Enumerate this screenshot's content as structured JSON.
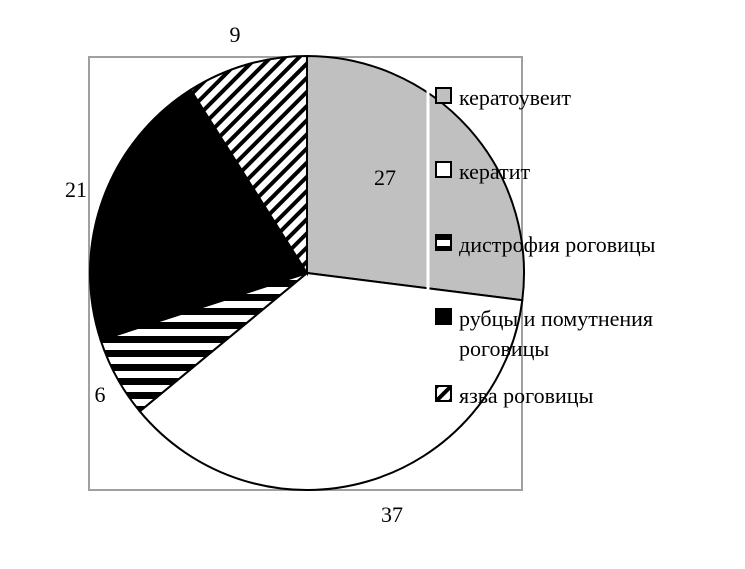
{
  "chart_data": {
    "type": "pie",
    "title": "",
    "start_angle": "12 o'clock",
    "direction": "clockwise",
    "legend_position": "right",
    "slices": [
      {
        "label": "кератоувеит",
        "value": 27,
        "fill": "#c0c0c0",
        "pattern": "solid"
      },
      {
        "label": "кератит",
        "value": 37,
        "fill": "#ffffff",
        "pattern": "solid"
      },
      {
        "label": "дистрофия роговицы",
        "value": 6,
        "fill": "#ffffff",
        "pattern": "horizontal-stripes"
      },
      {
        "label": "рубцы и помутнения роговицы",
        "value": 21,
        "fill": "#000000",
        "pattern": "solid"
      },
      {
        "label": "язва роговицы",
        "value": 9,
        "fill": "#ffffff",
        "pattern": "diagonal-hatch"
      }
    ],
    "data_labels": [
      "27",
      "37",
      "6",
      "21",
      "9"
    ]
  }
}
